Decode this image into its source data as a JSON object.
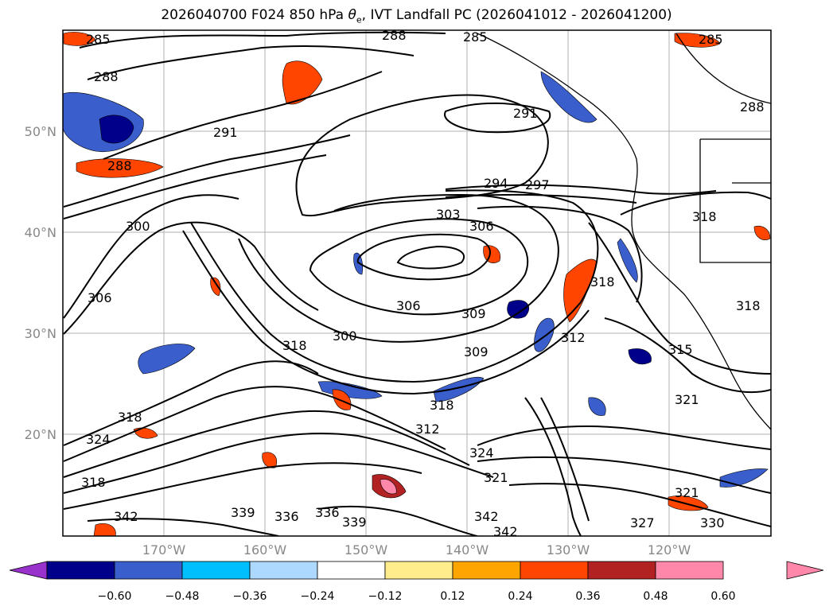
{
  "title": {
    "prefix": "2026040700 F024 850 hPa ",
    "theta": "θ",
    "theta_sub": "e",
    "suffix": ", IVT Landfall PC (2026041012 - 2026041200)"
  },
  "map": {
    "lat_labels": [
      "50°N",
      "40°N",
      "30°N",
      "20°N"
    ],
    "lon_labels": [
      "170°W",
      "160°W",
      "150°W",
      "140°W",
      "130°W",
      "120°W"
    ],
    "contour_labels": [
      "285",
      "288",
      "291",
      "294",
      "297",
      "300",
      "303",
      "306",
      "309",
      "312",
      "315",
      "318",
      "321",
      "324",
      "327",
      "330",
      "336",
      "339",
      "342"
    ]
  },
  "colorbar": {
    "ticks": [
      "−0.60",
      "−0.48",
      "−0.36",
      "−0.24",
      "−0.12",
      "0.12",
      "0.24",
      "0.36",
      "0.48",
      "0.60"
    ],
    "colors": {
      "under": "#9932cc",
      "c1": "#00008b",
      "c2": "#3a5fcd",
      "c3": "#00bfff",
      "c4": "#add8ff",
      "c5": "#ffffff",
      "c6": "#ffec8b",
      "c7": "#ffa500",
      "c8": "#ff4500",
      "c9": "#b22222",
      "over": "#ff88aa"
    }
  }
}
